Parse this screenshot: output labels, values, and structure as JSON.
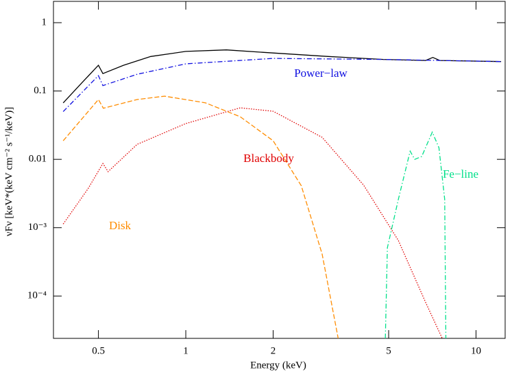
{
  "chart_data": {
    "type": "line",
    "xlabel": "Energy (keV)",
    "ylabel": "νFν [keV*(keV cm⁻² s⁻¹/keV)]",
    "xscale": "log",
    "yscale": "log",
    "xlim": [
      0.35,
      12.6
    ],
    "ylim": [
      2.4e-05,
      2.05
    ],
    "xticks": [
      0.5,
      1,
      2,
      5,
      10
    ],
    "yticks": [
      {
        "value": 0.0001,
        "label": "10⁻⁴"
      },
      {
        "value": 0.001,
        "label": "10⁻³"
      },
      0.01,
      0.1,
      1
    ],
    "series": [
      {
        "color": "#000000",
        "style": "solid",
        "x": [
          0.378,
          0.44,
          0.5,
          0.518,
          0.61,
          0.757,
          1,
          1.38,
          2,
          3.1,
          4.8,
          6.7,
          7.1,
          7.5,
          12.2
        ],
        "values": [
          0.067,
          0.134,
          0.238,
          0.18,
          0.238,
          0.32,
          0.38,
          0.4,
          0.36,
          0.32,
          0.29,
          0.28,
          0.31,
          0.28,
          0.27
        ]
      },
      {
        "name": "Power−law",
        "color": "#1010e0",
        "style": "dashdot",
        "x": [
          0.378,
          0.5,
          0.518,
          0.68,
          1,
          2,
          4.8,
          12.2
        ],
        "values": [
          0.05,
          0.168,
          0.12,
          0.176,
          0.25,
          0.3,
          0.29,
          0.27
        ]
      },
      {
        "name": "Blackbody",
        "color": "#e00000",
        "style": "dotted",
        "x": [
          0.378,
          0.46,
          0.518,
          0.54,
          0.68,
          1,
          1.54,
          2,
          2.95,
          4.1,
          5.4,
          6.7,
          7.65
        ],
        "values": [
          0.00113,
          0.0037,
          0.0087,
          0.0066,
          0.0166,
          0.0334,
          0.0567,
          0.0506,
          0.021,
          0.0042,
          0.00065,
          8.1e-05,
          2.4e-05
        ]
      },
      {
        "name": "Fe−line",
        "color": "#00e08a",
        "style": "dashdot",
        "x": [
          4.87,
          4.95,
          5.4,
          5.93,
          6.15,
          6.5,
          7.07,
          7.45,
          7.8,
          7.87
        ],
        "values": [
          2.4e-05,
          0.00051,
          0.0026,
          0.0132,
          0.01,
          0.011,
          0.025,
          0.0148,
          0.0026,
          2.4e-05
        ]
      },
      {
        "name": "Disk",
        "color": "#ff8c00",
        "style": "dashed",
        "x": [
          0.378,
          0.5,
          0.52,
          0.68,
          0.845,
          1.17,
          1.54,
          2,
          2.5,
          2.95,
          3.35
        ],
        "values": [
          0.0187,
          0.075,
          0.056,
          0.075,
          0.084,
          0.067,
          0.042,
          0.0187,
          0.0041,
          0.00041,
          2.4e-05
        ]
      }
    ]
  }
}
